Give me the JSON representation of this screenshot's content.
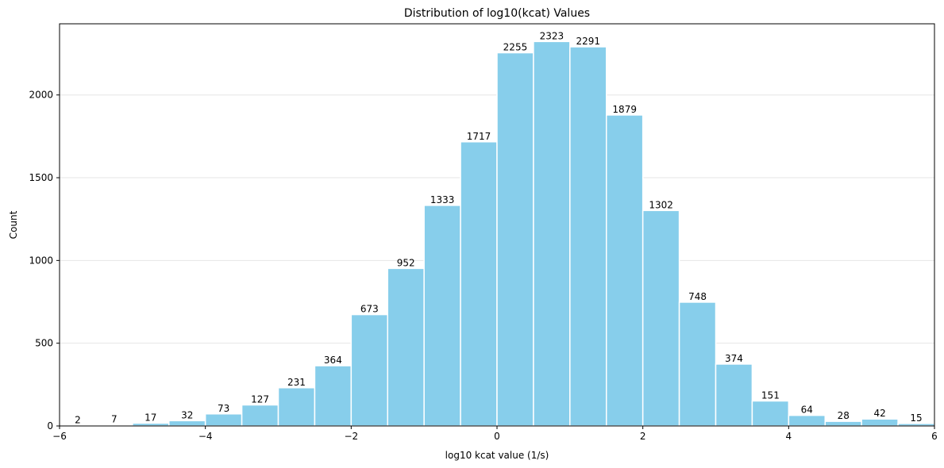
{
  "chart_data": {
    "type": "bar",
    "title": "Distribution of log10(kcat) Values",
    "xlabel": "log10 kcat value (1/s)",
    "ylabel": "Count",
    "xlim": [
      -6,
      6
    ],
    "ylim": [
      0,
      2430
    ],
    "xticks": [
      -6,
      -4,
      -2,
      0,
      2,
      4,
      6
    ],
    "xtick_labels": [
      "−6",
      "−4",
      "−2",
      "0",
      "2",
      "4",
      "6"
    ],
    "yticks": [
      0,
      500,
      1000,
      1500,
      2000
    ],
    "ytick_labels": [
      "0",
      "500",
      "1000",
      "1500",
      "2000"
    ],
    "bin_edges": [
      -6.0,
      -5.5,
      -5.0,
      -4.5,
      -4.0,
      -3.5,
      -3.0,
      -2.5,
      -2.0,
      -1.5,
      -1.0,
      -0.5,
      0.0,
      0.5,
      1.0,
      1.5,
      2.0,
      2.5,
      3.0,
      3.5,
      4.0,
      4.5,
      5.0,
      5.5,
      6.0
    ],
    "values": [
      2,
      7,
      17,
      32,
      73,
      127,
      231,
      364,
      673,
      952,
      1333,
      1717,
      2255,
      2323,
      2291,
      1879,
      1302,
      748,
      374,
      151,
      64,
      28,
      42,
      15
    ],
    "grid": "y",
    "bar_color": "#87CEEB",
    "bar_edge_color": "#ffffff"
  }
}
